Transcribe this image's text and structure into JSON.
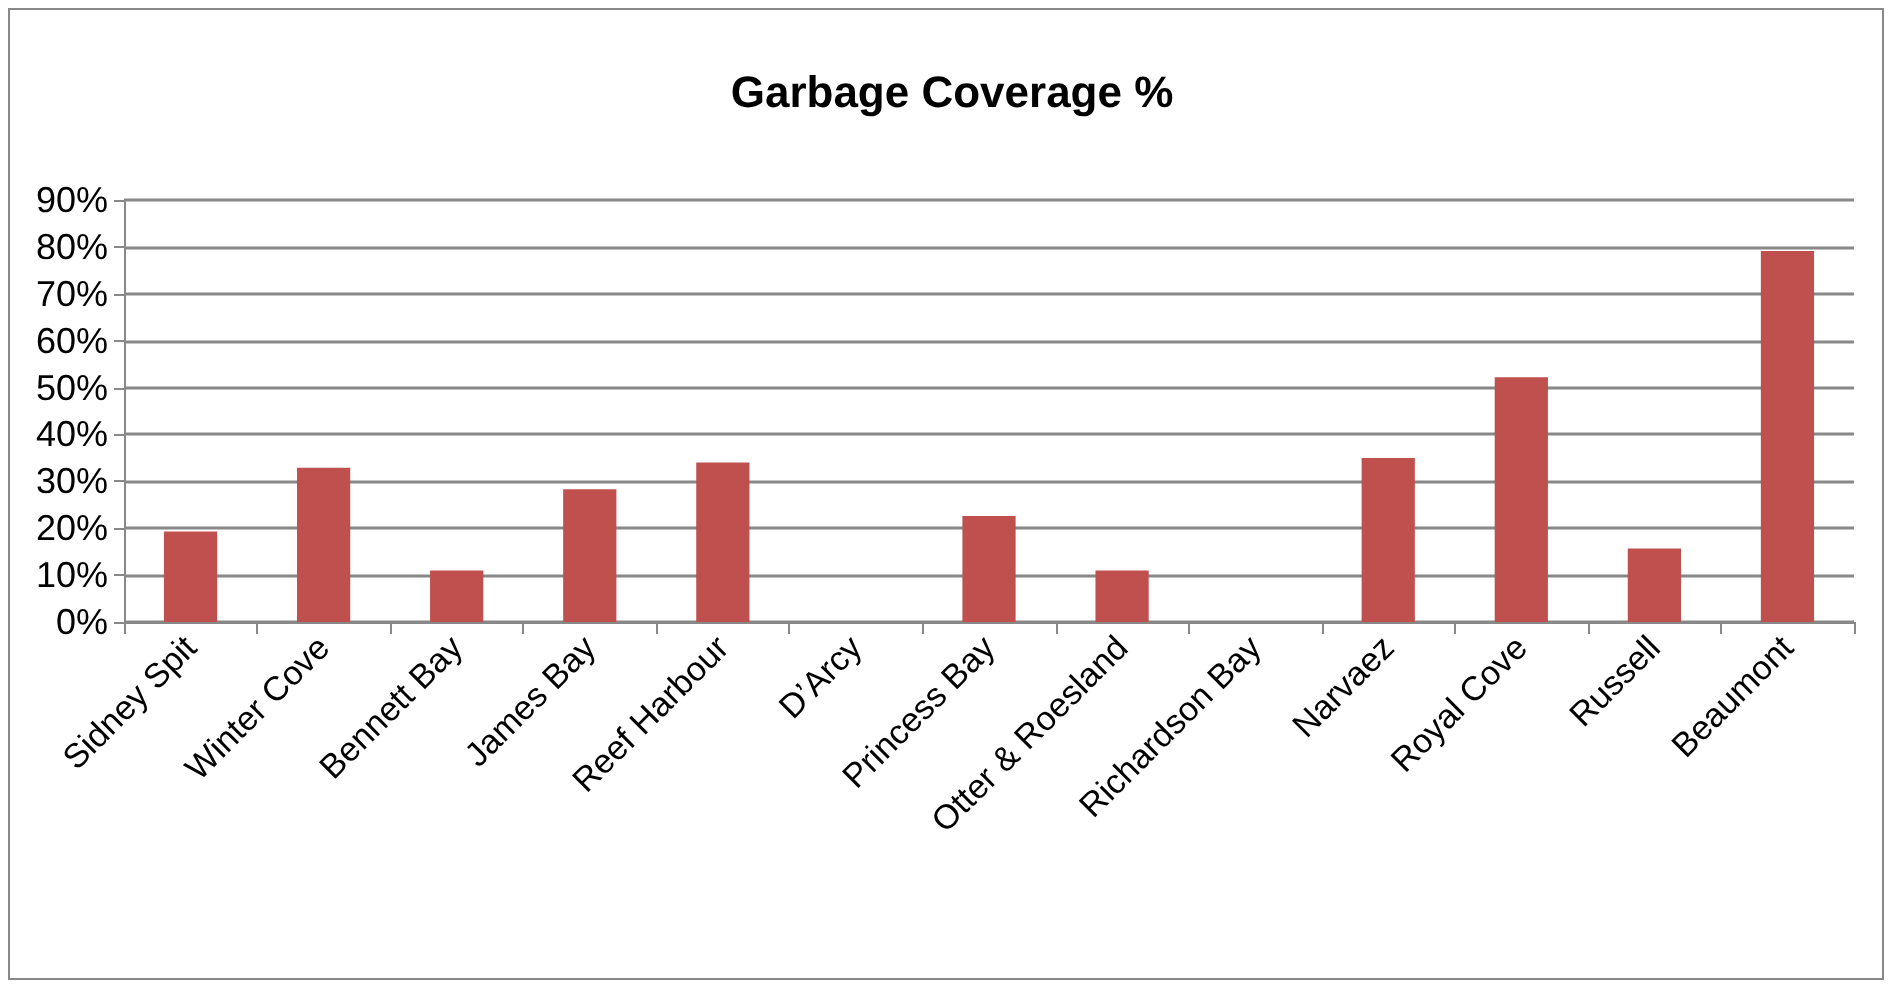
{
  "chart_data": {
    "type": "bar",
    "title": "Garbage Coverage %",
    "categories": [
      "Sidney Spit",
      "Winter Cove",
      "Bennett Bay",
      "James Bay",
      "Reef Harbour",
      "D’Arcy",
      "Princess Bay",
      "Otter & Roesland",
      "Richardson Bay",
      "Narvaez",
      "Royal Cove",
      "Russell",
      "Beaumont"
    ],
    "values": [
      19.3,
      32.9,
      11.0,
      28.3,
      34.0,
      0,
      22.6,
      11.0,
      0,
      35.0,
      52.2,
      15.7,
      79.1
    ],
    "color": "#c0504d",
    "ylim": [
      0,
      90
    ],
    "yticks": [
      {
        "value": 0,
        "label": "0%"
      },
      {
        "value": 10,
        "label": "10%"
      },
      {
        "value": 20,
        "label": "20%"
      },
      {
        "value": 30,
        "label": "30%"
      },
      {
        "value": 40,
        "label": "40%"
      },
      {
        "value": 50,
        "label": "50%"
      },
      {
        "value": 60,
        "label": "60%"
      },
      {
        "value": 70,
        "label": "70%"
      },
      {
        "value": 80,
        "label": "80%"
      },
      {
        "value": 90,
        "label": "90%"
      }
    ],
    "grid": "y"
  }
}
